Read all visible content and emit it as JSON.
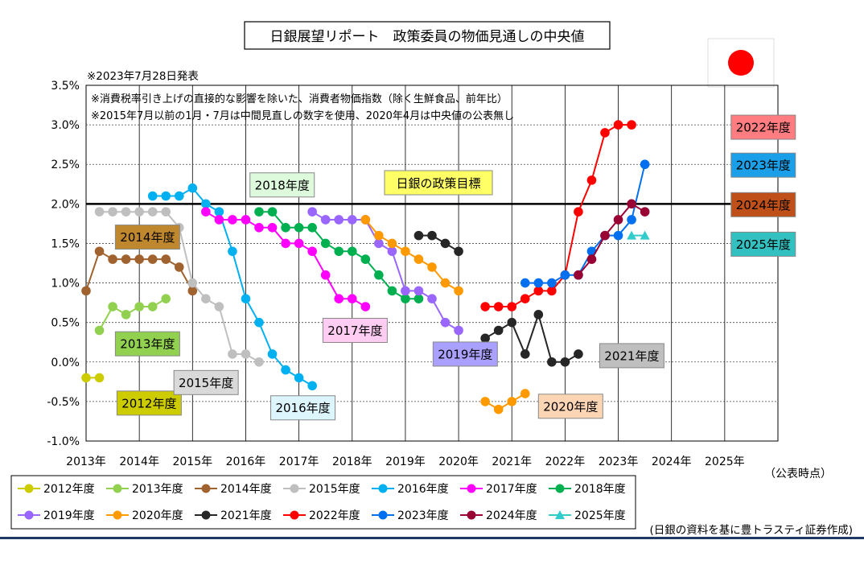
{
  "title": "日銀展望リポート　政策委員の物価見通しの中央値",
  "notes": {
    "date": "※2023年7月28日発表",
    "line1": "※消費税率引き上げの直接的な影響を除いた、消費者物価指数（除く生鮮食品、前年比）",
    "line2": "※2015年7月以前の1月・7月は中間見直しの数字を使用、2020年4月は中央値の公表無し"
  },
  "flag_icon": "japan-flag-icon",
  "source": "(日銀の資料を基に豊トラスティ証券作成)",
  "xlabel": "（公表時点）",
  "target_label": "日銀の政策目標",
  "chart_data": {
    "type": "line",
    "title": "日銀展望リポート　政策委員の物価見通しの中央値",
    "xlabel": "（公表時点）",
    "ylabel": "",
    "x_unit": "year (decimal, announcement time)",
    "xlim": [
      2013,
      2026
    ],
    "ylim": [
      -1.0,
      3.5
    ],
    "x_ticks": [
      "2013年",
      "2014年",
      "2015年",
      "2016年",
      "2017年",
      "2018年",
      "2019年",
      "2020年",
      "2021年",
      "2022年",
      "2023年",
      "2024年",
      "2025年"
    ],
    "y_ticks": [
      "3.5%",
      "3.0%",
      "2.5%",
      "2.0%",
      "1.5%",
      "1.0%",
      "0.5%",
      "0.0%",
      "-0.5%",
      "-1.0%"
    ],
    "grid": true,
    "legend_position": "bottom",
    "reference_line": {
      "y": 2.0,
      "label": "日銀の政策目標"
    },
    "series": [
      {
        "name": "2012年度",
        "color": "#cccc00",
        "label_bg": "#cccc00",
        "label_color": "#000000",
        "label_pos": [
          2013.58,
          -0.52
        ],
        "points": [
          [
            2013.0,
            -0.2
          ],
          [
            2013.25,
            -0.2
          ]
        ]
      },
      {
        "name": "2013年度",
        "color": "#92d050",
        "label_bg": "#92d050",
        "label_color": "#000000",
        "label_pos": [
          2013.55,
          0.23
        ],
        "points": [
          [
            2013.25,
            0.4
          ],
          [
            2013.5,
            0.7
          ],
          [
            2013.75,
            0.6
          ],
          [
            2014.0,
            0.7
          ],
          [
            2014.25,
            0.7
          ],
          [
            2014.5,
            0.8
          ]
        ]
      },
      {
        "name": "2014年度",
        "color": "#a0622e",
        "label_bg": "#c0882e",
        "label_color": "#000000",
        "label_pos": [
          2013.55,
          1.58
        ],
        "points": [
          [
            2013.0,
            0.9
          ],
          [
            2013.25,
            1.4
          ],
          [
            2013.5,
            1.3
          ],
          [
            2013.75,
            1.3
          ],
          [
            2014.0,
            1.3
          ],
          [
            2014.25,
            1.3
          ],
          [
            2014.5,
            1.3
          ],
          [
            2014.75,
            1.2
          ],
          [
            2015.0,
            0.9
          ]
        ]
      },
      {
        "name": "2015年度",
        "color": "#bfbfbf",
        "label_bg": "#d9d9d9",
        "label_color": "#000000",
        "label_pos": [
          2014.65,
          -0.26
        ],
        "points": [
          [
            2013.25,
            1.9
          ],
          [
            2013.5,
            1.9
          ],
          [
            2013.75,
            1.9
          ],
          [
            2014.0,
            1.9
          ],
          [
            2014.25,
            1.9
          ],
          [
            2014.5,
            1.9
          ],
          [
            2014.75,
            1.7
          ],
          [
            2015.0,
            1.0
          ],
          [
            2015.25,
            0.8
          ],
          [
            2015.5,
            0.7
          ],
          [
            2015.75,
            0.1
          ],
          [
            2016.0,
            0.1
          ],
          [
            2016.25,
            0.0
          ]
        ]
      },
      {
        "name": "2016年度",
        "color": "#00b0f0",
        "label_bg": "#ddf5fd",
        "label_color": "#000000",
        "label_pos": [
          2016.47,
          -0.58
        ],
        "points": [
          [
            2014.25,
            2.1
          ],
          [
            2014.5,
            2.1
          ],
          [
            2014.75,
            2.1
          ],
          [
            2015.0,
            2.2
          ],
          [
            2015.25,
            2.0
          ],
          [
            2015.5,
            1.9
          ],
          [
            2015.75,
            1.4
          ],
          [
            2016.0,
            0.8
          ],
          [
            2016.25,
            0.5
          ],
          [
            2016.5,
            0.1
          ],
          [
            2016.75,
            -0.1
          ],
          [
            2017.0,
            -0.2
          ],
          [
            2017.25,
            -0.3
          ]
        ]
      },
      {
        "name": "2017年度",
        "color": "#ff00ff",
        "label_bg": "#ffccf2",
        "label_color": "#000000",
        "label_pos": [
          2017.45,
          0.4
        ],
        "points": [
          [
            2015.25,
            1.9
          ],
          [
            2015.5,
            1.8
          ],
          [
            2015.75,
            1.8
          ],
          [
            2016.0,
            1.8
          ],
          [
            2016.25,
            1.7
          ],
          [
            2016.5,
            1.7
          ],
          [
            2016.75,
            1.5
          ],
          [
            2017.0,
            1.5
          ],
          [
            2017.25,
            1.4
          ],
          [
            2017.5,
            1.1
          ],
          [
            2017.75,
            0.8
          ],
          [
            2018.0,
            0.8
          ],
          [
            2018.25,
            0.7
          ]
        ]
      },
      {
        "name": "2018年度",
        "color": "#00b050",
        "label_bg": "#ddfadd",
        "label_color": "#000000",
        "label_pos": [
          2016.08,
          2.24
        ],
        "points": [
          [
            2016.25,
            1.9
          ],
          [
            2016.5,
            1.9
          ],
          [
            2016.75,
            1.7
          ],
          [
            2017.0,
            1.7
          ],
          [
            2017.25,
            1.7
          ],
          [
            2017.5,
            1.5
          ],
          [
            2017.75,
            1.4
          ],
          [
            2018.0,
            1.4
          ],
          [
            2018.25,
            1.3
          ],
          [
            2018.5,
            1.1
          ],
          [
            2018.75,
            0.9
          ],
          [
            2019.0,
            0.8
          ],
          [
            2019.25,
            0.8
          ]
        ]
      },
      {
        "name": "2019年度",
        "color": "#9966ff",
        "label_bg": "#aaa0ff",
        "label_color": "#000000",
        "label_pos": [
          2019.52,
          0.1
        ],
        "points": [
          [
            2017.25,
            1.9
          ],
          [
            2017.5,
            1.8
          ],
          [
            2017.75,
            1.8
          ],
          [
            2018.0,
            1.8
          ],
          [
            2018.25,
            1.8
          ],
          [
            2018.5,
            1.5
          ],
          [
            2018.75,
            1.4
          ],
          [
            2019.0,
            0.9
          ],
          [
            2019.25,
            0.9
          ],
          [
            2019.5,
            0.8
          ],
          [
            2019.75,
            0.5
          ],
          [
            2020.0,
            0.4
          ]
        ]
      },
      {
        "name": "2020年度",
        "color": "#ff9900",
        "label_bg": "#fcd5b4",
        "label_color": "#000000",
        "label_pos": [
          2021.5,
          -0.56
        ],
        "points": [
          [
            2018.25,
            1.8
          ],
          [
            2018.5,
            1.6
          ],
          [
            2018.75,
            1.5
          ],
          [
            2019.0,
            1.4
          ],
          [
            2019.25,
            1.3
          ],
          [
            2019.5,
            1.2
          ],
          [
            2019.75,
            1.0
          ],
          [
            2020.0,
            0.9
          ]
        ],
        "points2": [
          [
            2020.5,
            -0.5
          ],
          [
            2020.75,
            -0.6
          ],
          [
            2021.0,
            -0.5
          ],
          [
            2021.25,
            -0.4
          ]
        ]
      },
      {
        "name": "2021年度",
        "color": "#262626",
        "label_bg": "#bfbfbf",
        "label_color": "#000000",
        "label_pos": [
          2022.65,
          0.08
        ],
        "points": [
          [
            2019.25,
            1.6
          ],
          [
            2019.5,
            1.6
          ],
          [
            2019.75,
            1.5
          ],
          [
            2020.0,
            1.4
          ]
        ],
        "points2": [
          [
            2020.5,
            0.3
          ],
          [
            2020.75,
            0.4
          ],
          [
            2021.0,
            0.5
          ],
          [
            2021.25,
            0.1
          ],
          [
            2021.5,
            0.6
          ],
          [
            2021.75,
            0.0
          ],
          [
            2022.0,
            0.0
          ],
          [
            2022.25,
            0.1
          ]
        ]
      },
      {
        "name": "2022年度",
        "color": "#ff0000",
        "label_bg": "#ff7c80",
        "label_color": "#000000",
        "label_pos": [
          2025.12,
          2.97
        ],
        "points": [
          [
            2020.5,
            0.7
          ],
          [
            2020.75,
            0.7
          ],
          [
            2021.0,
            0.7
          ],
          [
            2021.25,
            0.8
          ],
          [
            2021.5,
            0.9
          ],
          [
            2021.75,
            0.9
          ],
          [
            2022.0,
            1.1
          ],
          [
            2022.25,
            1.9
          ],
          [
            2022.5,
            2.3
          ],
          [
            2022.75,
            2.9
          ],
          [
            2023.0,
            3.0
          ],
          [
            2023.25,
            3.0
          ]
        ]
      },
      {
        "name": "2023年度",
        "color": "#0070f0",
        "label_bg": "#1a9fe8",
        "label_color": "#000000",
        "label_pos": [
          2025.12,
          2.49
        ],
        "points": [
          [
            2021.25,
            1.0
          ],
          [
            2021.5,
            1.0
          ],
          [
            2021.75,
            1.0
          ],
          [
            2022.0,
            1.1
          ],
          [
            2022.25,
            1.1
          ],
          [
            2022.5,
            1.4
          ],
          [
            2022.75,
            1.6
          ],
          [
            2023.0,
            1.6
          ],
          [
            2023.25,
            1.8
          ],
          [
            2023.5,
            2.5
          ]
        ]
      },
      {
        "name": "2024年度",
        "color": "#990033",
        "label_bg": "#c0501a",
        "label_color": "#000000",
        "label_pos": [
          2025.12,
          1.99
        ],
        "points": [
          [
            2022.25,
            1.1
          ],
          [
            2022.5,
            1.3
          ],
          [
            2022.75,
            1.6
          ],
          [
            2023.0,
            1.8
          ],
          [
            2023.25,
            2.0
          ],
          [
            2023.5,
            1.9
          ]
        ]
      },
      {
        "name": "2025年度",
        "color": "#33cccc",
        "label_bg": "#33c0c0",
        "label_color": "#000000",
        "label_pos": [
          2025.12,
          1.49
        ],
        "marker": "triangle",
        "points": [
          [
            2023.25,
            1.6
          ],
          [
            2023.5,
            1.6
          ]
        ]
      }
    ]
  }
}
